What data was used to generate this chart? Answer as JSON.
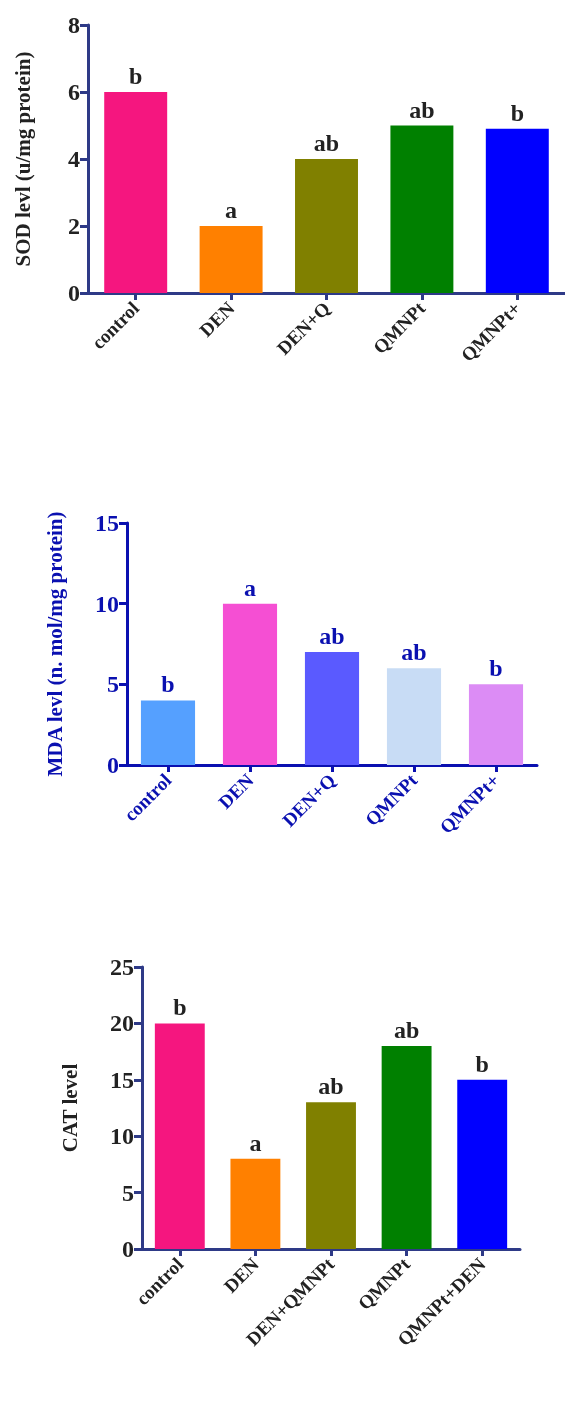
{
  "chart_data": [
    {
      "type": "bar",
      "ylabel": "SOD levl (u/mg protein)",
      "categories": [
        "control",
        "DEN",
        "DEN+Q",
        "QMNPt",
        "QMNPt+"
      ],
      "values": [
        6,
        2,
        4,
        5,
        4.9
      ],
      "colors": [
        "#f5167f",
        "#ff8000",
        "#808000",
        "#008000",
        "#0000ff"
      ],
      "ylim": [
        0,
        8
      ],
      "yticks": [
        0,
        2,
        4,
        6,
        8
      ],
      "grid": false,
      "annotations": [
        "b",
        "a",
        "ab",
        "ab",
        "b"
      ]
    },
    {
      "type": "bar",
      "ylabel": "MDA levl (n. mol/mg protein)",
      "categories": [
        "control",
        "DEN",
        "DEN+Q",
        "QMNPt",
        "QMNPt+"
      ],
      "values": [
        4,
        10,
        7,
        6,
        5
      ],
      "colors": [
        "#55a0ff",
        "#f54fd3",
        "#5a5aff",
        "#c8dcf5",
        "#dc8cf5"
      ],
      "ylim": [
        0,
        15
      ],
      "yticks": [
        0,
        5,
        10,
        15
      ],
      "grid": false,
      "annotations": [
        "b",
        "a",
        "ab",
        "ab",
        "b"
      ]
    },
    {
      "type": "bar",
      "ylabel": "CAT level",
      "categories": [
        "control",
        "DEN",
        "DEN+QMNPt",
        "QMNPt",
        "QMNPt+DEN"
      ],
      "values": [
        20,
        8,
        13,
        18,
        15
      ],
      "colors": [
        "#f5167f",
        "#ff8000",
        "#808000",
        "#008000",
        "#0000ff"
      ],
      "ylim": [
        0,
        25
      ],
      "yticks": [
        0,
        5,
        10,
        15,
        20,
        25
      ],
      "grid": false,
      "annotations": [
        "b",
        "a",
        "ab",
        "ab",
        "b"
      ]
    }
  ]
}
